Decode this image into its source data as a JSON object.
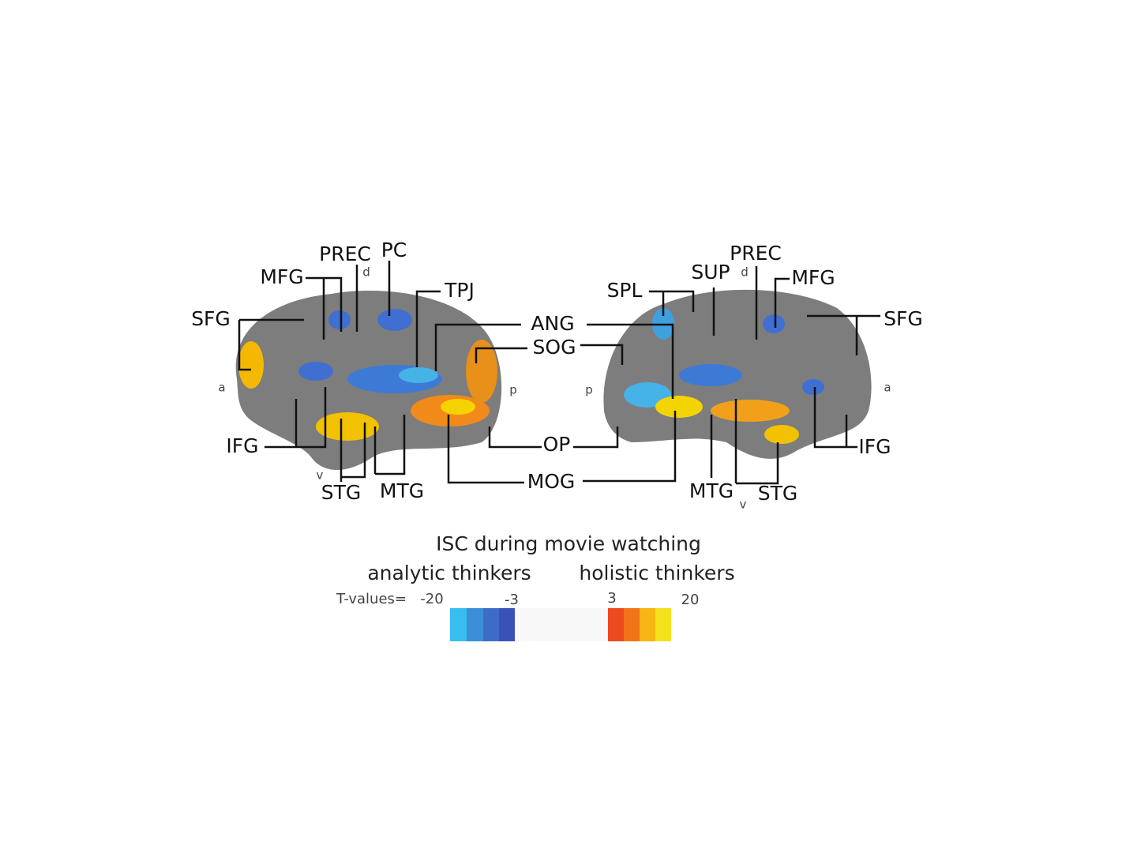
{
  "left_hemisphere": {
    "labels": [
      "SFG",
      "MFG",
      "PREC",
      "PC",
      "TPJ",
      "IFG",
      "STG",
      "MTG"
    ],
    "orientation": {
      "d": "d",
      "a": "a",
      "p": "p",
      "v": "v"
    }
  },
  "shared_labels": [
    "ANG",
    "SOG",
    "OP",
    "MOG"
  ],
  "right_hemisphere": {
    "labels": [
      "SPL",
      "SUP",
      "PREC",
      "MFG",
      "SFG",
      "IFG",
      "MTG",
      "STG"
    ],
    "orientation": {
      "d": "d",
      "p": "p",
      "a": "a",
      "v": "v"
    }
  },
  "legend": {
    "title": "ISC during movie watching",
    "groups": [
      "analytic thinkers",
      "holistic thinkers"
    ],
    "scale_label": "T-values=",
    "ticks": [
      -20,
      -3,
      3,
      20
    ]
  }
}
